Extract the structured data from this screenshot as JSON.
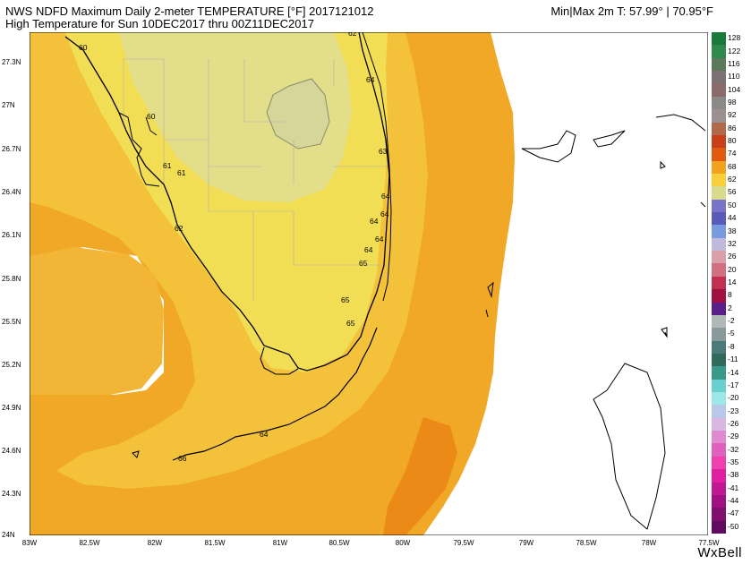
{
  "header": {
    "line1": "NWS NDFD Maximum Daily 2-meter TEMPERATURE [°F]   2017121012",
    "line2": "High Temperature for Sun 10DEC2017 thru 00Z11DEC2017",
    "minmax": "Min|Max 2m T:  57.99°   |   70.95°F"
  },
  "lat_labels": [
    "27.3N",
    "27N",
    "26.7N",
    "26.4N",
    "26.1N",
    "25.8N",
    "25.5N",
    "25.2N",
    "24.9N",
    "24.6N",
    "24.3N",
    "24N"
  ],
  "lon_labels": [
    "83W",
    "82.5W",
    "82W",
    "81.5W",
    "81W",
    "80.5W",
    "80W",
    "79.5W",
    "79W",
    "78.5W",
    "78W",
    "77.5W"
  ],
  "colorbar": {
    "values": [
      "128",
      "122",
      "116",
      "110",
      "104",
      "98",
      "92",
      "86",
      "80",
      "74",
      "68",
      "62",
      "56",
      "50",
      "44",
      "38",
      "32",
      "26",
      "20",
      "14",
      "8",
      "2",
      "-2",
      "-5",
      "-8",
      "-11",
      "-14",
      "-17",
      "-20",
      "-23",
      "-26",
      "-29",
      "-32",
      "-35",
      "-38",
      "-41",
      "-44",
      "-47",
      "-50"
    ],
    "colors": [
      "#1a7a3a",
      "#2f8a4e",
      "#5a7a5a",
      "#7a7272",
      "#8a6a6a",
      "#8c8a86",
      "#9a9090",
      "#b06a4a",
      "#c8401a",
      "#e25a10",
      "#f3a21f",
      "#f6cf3a",
      "#d8dc8a",
      "#7a74c8",
      "#5a5ab8",
      "#7a9ae0",
      "#bfb9dc",
      "#d8a0a8",
      "#d07080",
      "#c03050",
      "#a01040",
      "#5a208a",
      "#b0b8b8",
      "#8a9a9a",
      "#4a7a7a",
      "#2f6a5a",
      "#3a9a8a",
      "#6acfcf",
      "#9ae8e8",
      "#b8c8e8",
      "#d8b8e0",
      "#e08ad0",
      "#e060c0",
      "#f040b0",
      "#e020a0",
      "#c01890",
      "#a01080",
      "#801070",
      "#600a60"
    ]
  },
  "contour_labels": [
    "60",
    "60",
    "61",
    "61",
    "62",
    "62",
    "63",
    "64",
    "64",
    "64",
    "64",
    "64",
    "64",
    "65",
    "65",
    "65",
    "64",
    "66"
  ],
  "brand": "WxBell"
}
